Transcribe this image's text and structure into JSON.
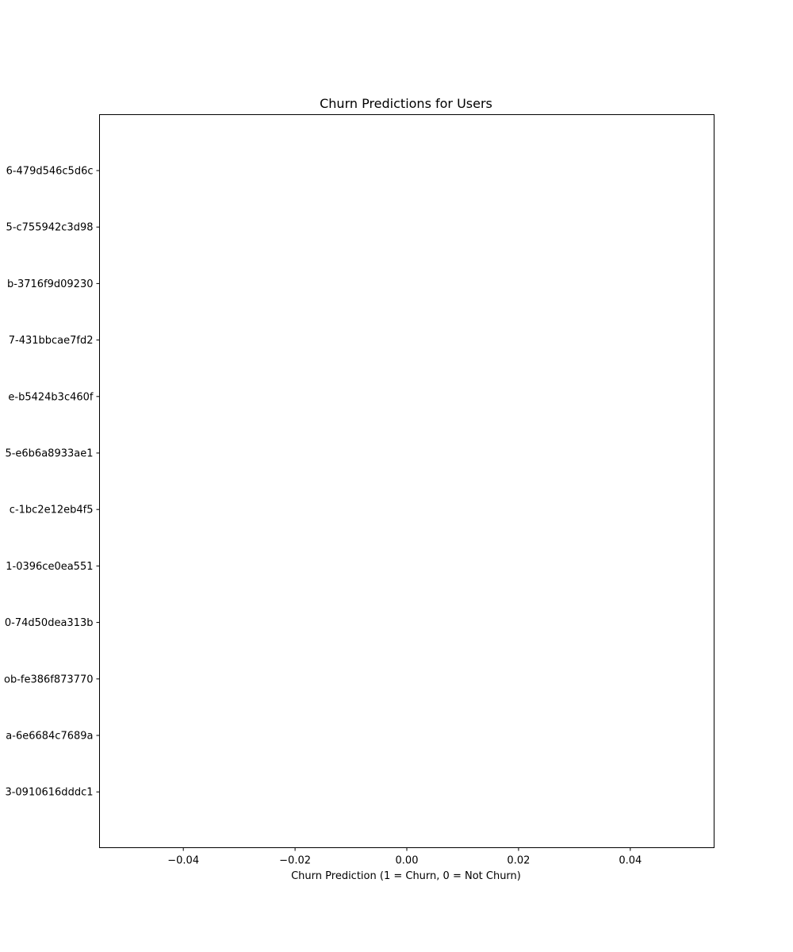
{
  "chart_data": {
    "type": "bar",
    "orientation": "horizontal",
    "title": "Churn Predictions for Users",
    "xlabel": "Churn Prediction (1 = Churn, 0 = Not Churn)",
    "ylabel": "",
    "xlim": [
      -0.055,
      0.055
    ],
    "xticks": [
      -0.04,
      -0.02,
      0.0,
      0.02,
      0.04
    ],
    "xtick_labels": [
      "−0.04",
      "−0.02",
      "0.00",
      "0.02",
      "0.04"
    ],
    "categories": [
      "6-479d546c5d6c",
      "5-c755942c3d98",
      "b-3716f9d09230",
      "7-431bbcae7fd2",
      "e-b5424b3c460f",
      "5-e6b6a8933ae1",
      "c-1bc2e12eb4f5",
      "1-0396ce0ea551",
      "0-74d50dea313b",
      "ob-fe386f873770",
      "a-6e6684c7689a",
      "3-0910616dddc1"
    ],
    "values": [
      0,
      0,
      0,
      0,
      0,
      0,
      0,
      0,
      0,
      0,
      0,
      0
    ],
    "grid": false,
    "legend": "none",
    "colors": {
      "bar": "#1f77b4",
      "axes": "#000000",
      "background": "#ffffff"
    }
  }
}
